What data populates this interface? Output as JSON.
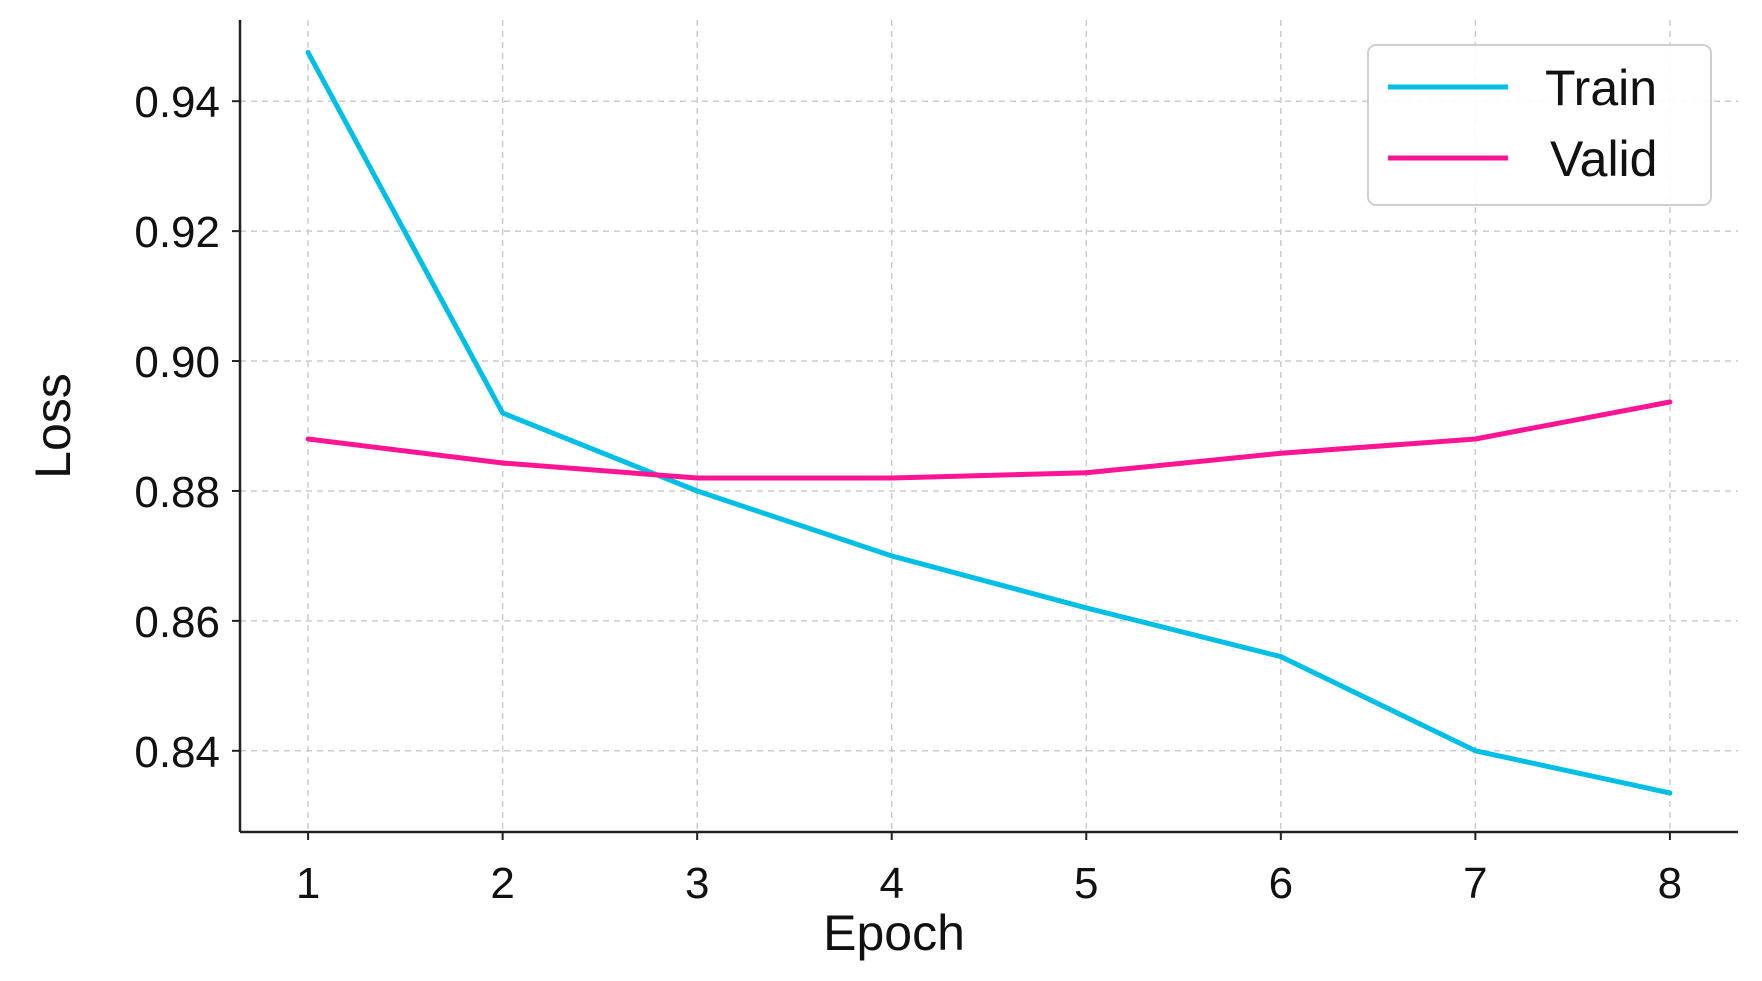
{
  "chart_data": {
    "type": "line",
    "title": "",
    "xlabel": "Epoch",
    "ylabel": "Loss",
    "x": [
      1,
      2,
      3,
      4,
      5,
      6,
      7,
      8
    ],
    "xticks": [
      "1",
      "2",
      "3",
      "4",
      "5",
      "6",
      "7",
      "8"
    ],
    "yticks": [
      "0.84",
      "0.86",
      "0.88",
      "0.90",
      "0.92",
      "0.94"
    ],
    "xlim": [
      0.65,
      8.35
    ],
    "ylim": [
      0.8275,
      0.9525
    ],
    "grid": true,
    "legend_position": "top-right",
    "series": [
      {
        "name": "Train",
        "color": "#00bfe6",
        "values": [
          0.9475,
          0.892,
          0.88,
          0.87,
          0.862,
          0.8545,
          0.84,
          0.8335
        ]
      },
      {
        "name": "Valid",
        "color": "#ff1493",
        "values": [
          0.888,
          0.8843,
          0.882,
          0.882,
          0.8828,
          0.8858,
          0.888,
          0.8937
        ]
      }
    ]
  }
}
